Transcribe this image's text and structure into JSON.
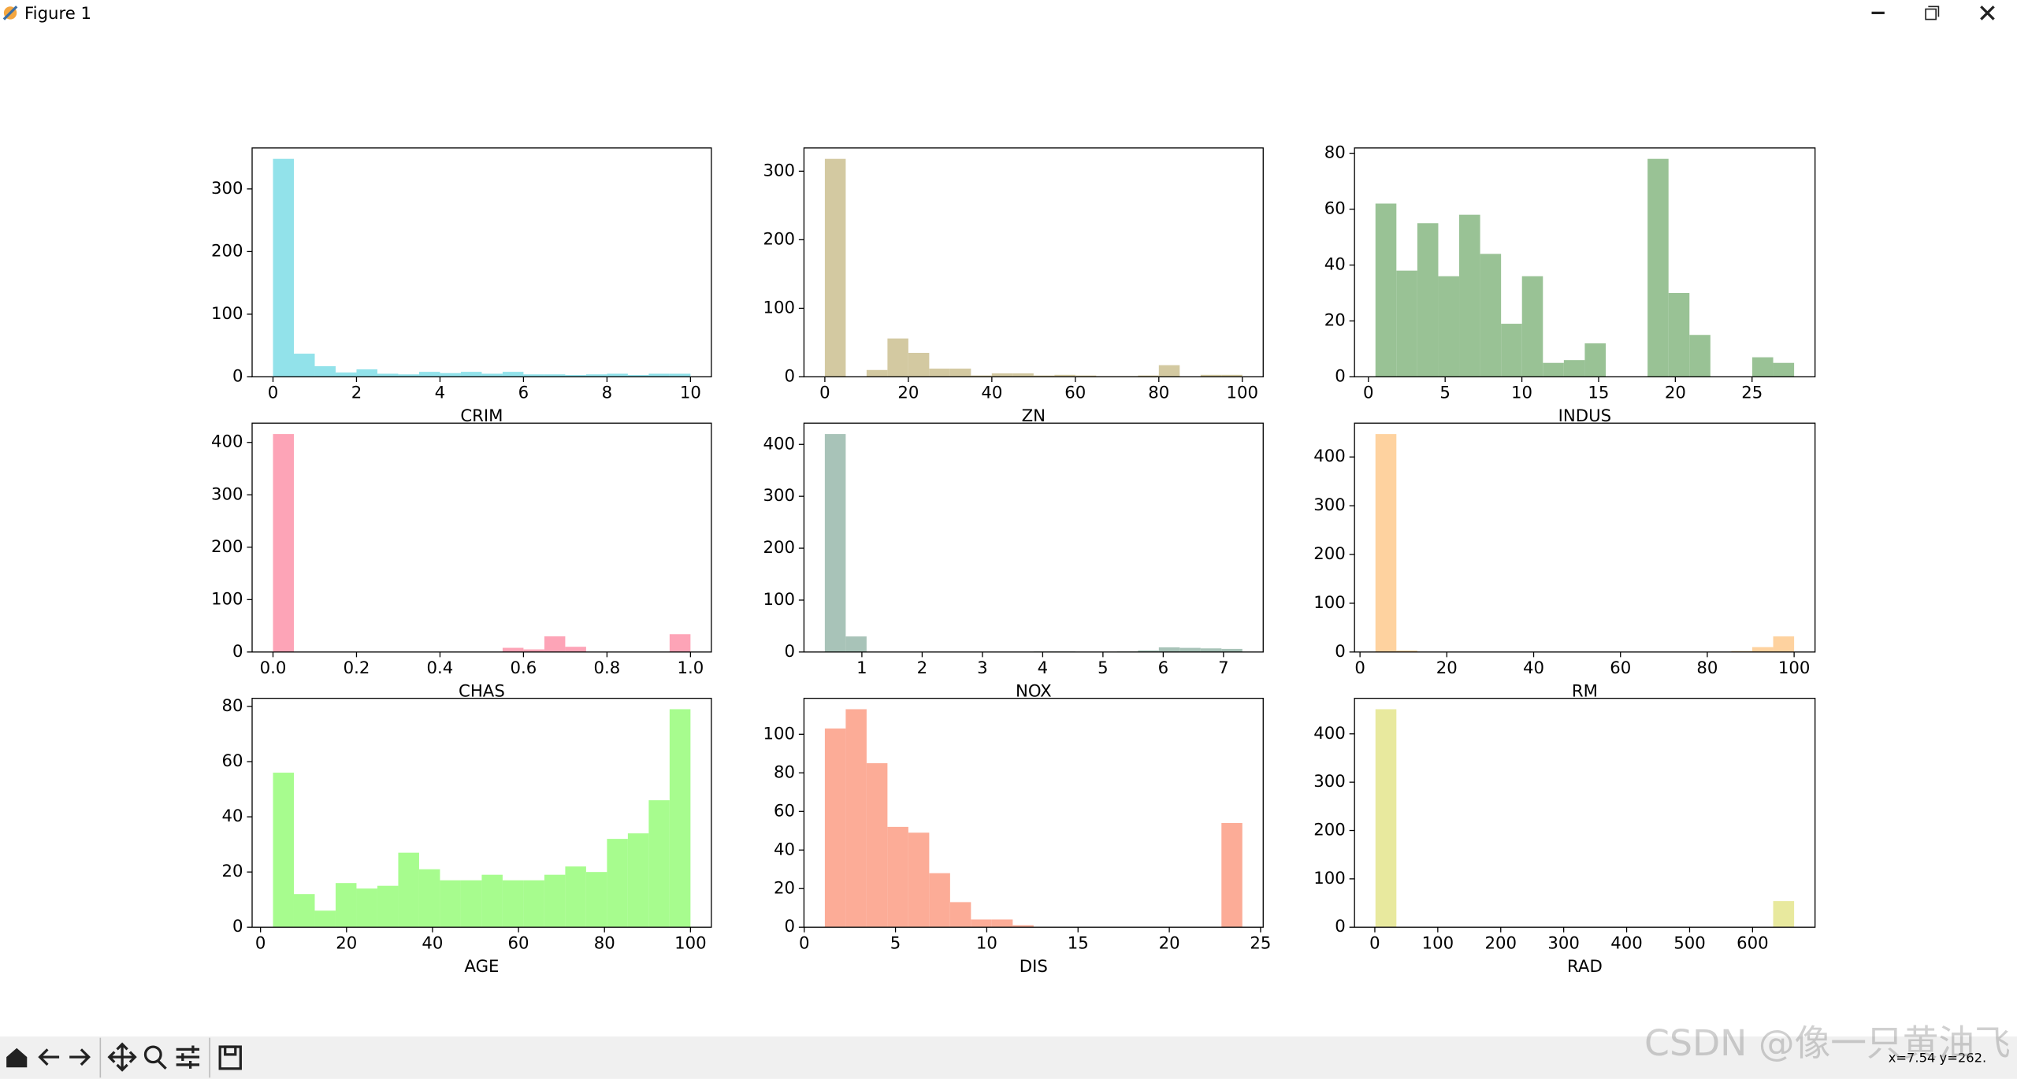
{
  "window": {
    "title": "Figure 1",
    "status": "x=7.54 y=262."
  },
  "watermark": "CSDN @像一只黄油飞",
  "chart_data": [
    {
      "type": "histogram",
      "xlabel": "CRIM",
      "color": "#92e2ea",
      "bins": [
        0,
        0.5,
        1,
        1.5,
        2,
        2.5,
        3,
        3.5,
        4,
        4.5,
        5,
        5.5,
        6,
        6.5,
        7,
        7.5,
        8,
        8.5,
        9,
        9.5,
        10
      ],
      "values": [
        348,
        37,
        17,
        7,
        12,
        5,
        4,
        8,
        6,
        8,
        5,
        8,
        4,
        4,
        3,
        4,
        5,
        3,
        5,
        5
      ],
      "xlim": [
        -0.5,
        10.5
      ],
      "ylim": [
        0,
        365.4
      ],
      "xticks": [
        0,
        2,
        4,
        6,
        8,
        10
      ],
      "yticks": [
        0,
        100,
        200,
        300
      ]
    },
    {
      "type": "histogram",
      "xlabel": "ZN",
      "color": "#d3c9a1",
      "bins": [
        0,
        5,
        10,
        15,
        20,
        25,
        30,
        35,
        40,
        45,
        50,
        55,
        60,
        65,
        70,
        75,
        80,
        85,
        90,
        95,
        100
      ],
      "values": [
        318,
        0,
        10,
        56,
        35,
        12,
        12,
        2,
        5,
        5,
        2,
        3,
        2,
        1,
        1,
        2,
        17,
        0,
        3,
        3
      ],
      "xlim": [
        -5,
        105
      ],
      "ylim": [
        0,
        333.9
      ],
      "xticks": [
        0,
        20,
        40,
        60,
        80,
        100
      ],
      "yticks": [
        0,
        100,
        200,
        300
      ]
    },
    {
      "type": "histogram",
      "xlabel": "INDUS",
      "color": "#99c295",
      "bins": [
        0.46,
        1.824,
        3.188,
        4.552,
        5.916,
        7.28,
        8.644,
        10.008,
        11.372,
        12.736,
        14.1,
        15.464,
        16.828,
        18.192,
        19.556,
        20.92,
        22.284,
        23.648,
        25.012,
        26.376,
        27.74
      ],
      "values": [
        62,
        38,
        55,
        36,
        58,
        44,
        19,
        36,
        5,
        6,
        12,
        0,
        0,
        78,
        30,
        15,
        0,
        0,
        7,
        5
      ],
      "xlim": [
        -0.904,
        29.104
      ],
      "ylim": [
        0,
        81.9
      ],
      "xticks": [
        0,
        5,
        10,
        15,
        20,
        25
      ],
      "yticks": [
        0,
        20,
        40,
        60,
        80
      ]
    },
    {
      "type": "histogram",
      "xlabel": "CHAS",
      "color": "#fda4b7",
      "bins": [
        0,
        0.05,
        0.1,
        0.15,
        0.2,
        0.25,
        0.3,
        0.35,
        0.4,
        0.45,
        0.5,
        0.55,
        0.6,
        0.65,
        0.7,
        0.75,
        0.8,
        0.85,
        0.9,
        0.95,
        1
      ],
      "values": [
        416,
        0,
        0,
        0,
        0,
        0,
        0,
        0,
        0,
        0,
        0,
        8,
        5,
        30,
        10,
        0,
        0,
        0,
        0,
        34
      ],
      "xlim": [
        -0.05,
        1.05
      ],
      "ylim": [
        0,
        436.8
      ],
      "xticks": [
        {
          "value": 0,
          "label": "0.0"
        },
        0.2,
        0.4,
        0.6,
        0.8,
        {
          "value": 1,
          "label": "1.0"
        }
      ],
      "yticks": [
        0,
        100,
        200,
        300,
        400
      ]
    },
    {
      "type": "histogram",
      "xlabel": "NOX",
      "color": "#a8c3b8",
      "bins": [
        0.385,
        0.7314,
        1.0778,
        1.4242,
        1.7706,
        2.117,
        2.4634,
        2.8098,
        3.1562,
        3.5026,
        3.849,
        4.1954,
        4.5418,
        4.8882,
        5.2346,
        5.581,
        5.9274,
        6.2738,
        6.6202,
        6.9666,
        7.313
      ],
      "values": [
        420,
        30,
        0,
        0,
        0,
        0,
        0,
        0,
        0,
        0,
        1,
        1,
        0,
        0,
        1,
        3,
        9,
        8,
        7,
        6
      ],
      "xlim": [
        0.039,
        7.659
      ],
      "ylim": [
        0,
        441
      ],
      "xticks": [
        1,
        2,
        3,
        4,
        5,
        6,
        7
      ],
      "yticks": [
        0,
        100,
        200,
        300,
        400
      ]
    },
    {
      "type": "histogram",
      "xlabel": "RM",
      "color": "#fed29f",
      "bins": [
        3.56,
        8.382,
        13.204,
        18.026,
        22.848,
        27.67,
        32.492,
        37.314,
        42.136,
        46.958,
        51.78,
        56.602,
        61.424,
        66.246,
        71.068,
        75.89,
        80.712,
        85.534,
        90.356,
        95.178,
        100
      ],
      "values": [
        447,
        3,
        0,
        0,
        0,
        0,
        0,
        0,
        0,
        0,
        0,
        0,
        0,
        0,
        0,
        0,
        0,
        2,
        10,
        32
      ],
      "xlim": [
        -1.26,
        104.82
      ],
      "ylim": [
        0,
        469.4
      ],
      "xticks": [
        0,
        20,
        40,
        60,
        80,
        100
      ],
      "yticks": [
        0,
        100,
        200,
        300,
        400
      ]
    },
    {
      "type": "histogram",
      "xlabel": "AGE",
      "color": "#a7fc8e",
      "bins": [
        2.9,
        7.755,
        12.61,
        17.465,
        22.32,
        27.175,
        32.03,
        36.885,
        41.74,
        46.595,
        51.45,
        56.305,
        61.16,
        66.015,
        70.87,
        75.725,
        80.58,
        85.435,
        90.29,
        95.145,
        100
      ],
      "values": [
        56,
        12,
        6,
        16,
        14,
        15,
        27,
        21,
        17,
        17,
        19,
        17,
        17,
        19,
        22,
        20,
        32,
        34,
        46,
        79
      ],
      "xlim": [
        -1.955,
        104.855
      ],
      "ylim": [
        0,
        82.95
      ],
      "xticks": [
        0,
        20,
        40,
        60,
        80,
        100
      ],
      "yticks": [
        0,
        20,
        40,
        60,
        80
      ]
    },
    {
      "type": "histogram",
      "xlabel": "DIS",
      "color": "#fcac97",
      "bins": [
        1.13,
        2.2735,
        3.417,
        4.5605,
        5.704,
        6.8475,
        7.991,
        9.1345,
        10.278,
        11.4215,
        12.565,
        13.7085,
        14.852,
        15.9955,
        17.139,
        18.2825,
        19.426,
        20.5695,
        21.713,
        22.8565,
        24
      ],
      "values": [
        103,
        113,
        85,
        52,
        49,
        28,
        13,
        4,
        4,
        1,
        0,
        0,
        0,
        0,
        0,
        0,
        0,
        0,
        0,
        54
      ],
      "xlim": [
        -0.0135,
        25.1435
      ],
      "ylim": [
        0,
        118.65
      ],
      "xticks": [
        0,
        5,
        10,
        15,
        20,
        25
      ],
      "yticks": [
        0,
        20,
        40,
        60,
        80,
        100
      ]
    },
    {
      "type": "histogram",
      "xlabel": "RAD",
      "color": "#e8e99e",
      "bins": [
        1,
        34.25,
        67.5,
        100.75,
        134,
        167.25,
        200.5,
        233.75,
        267,
        300.25,
        333.5,
        366.75,
        400,
        433.25,
        466.5,
        499.75,
        533,
        566.25,
        599.5,
        632.75,
        666
      ],
      "values": [
        451,
        0,
        0,
        0,
        0,
        0,
        0,
        0,
        0,
        0,
        0,
        0,
        0,
        0,
        0,
        0,
        0,
        0,
        0,
        54
      ],
      "xlim": [
        -32.25,
        699.25
      ],
      "ylim": [
        0,
        473.55
      ],
      "xticks": [
        0,
        100,
        200,
        300,
        400,
        500,
        600
      ],
      "yticks": [
        0,
        100,
        200,
        300,
        400
      ]
    }
  ]
}
